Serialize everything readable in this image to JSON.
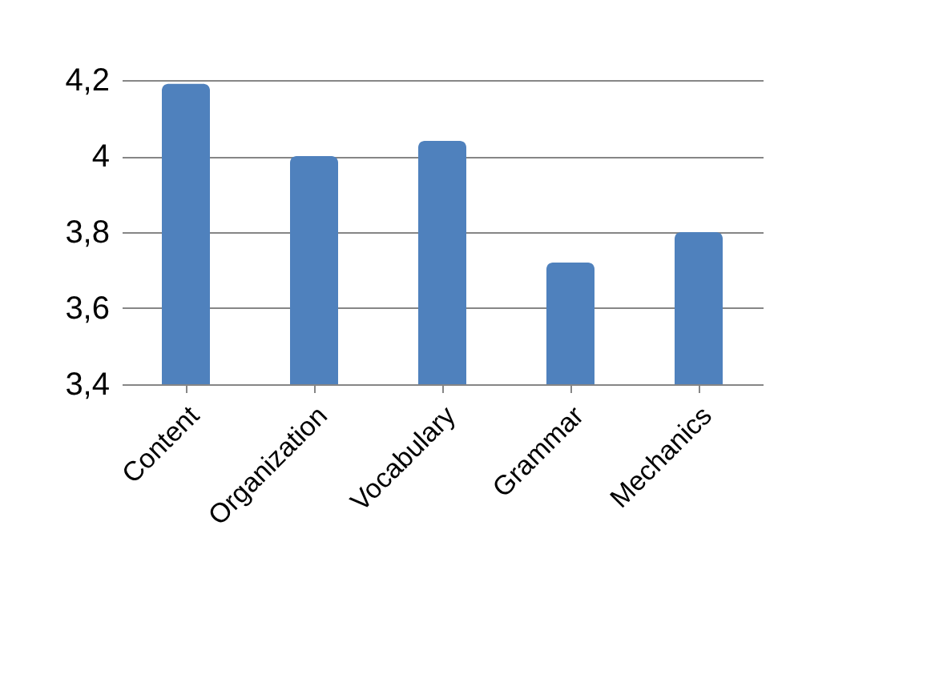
{
  "chart_data": {
    "type": "bar",
    "categories": [
      "Content",
      "Organization",
      "Vocabulary",
      "Grammar",
      "Mechanics"
    ],
    "values": [
      4.19,
      4.0,
      4.04,
      3.72,
      3.8
    ],
    "color": "#4f81bd",
    "ylim": [
      3.4,
      4.2
    ],
    "yticks": [
      {
        "value": 3.4,
        "label": "3,4"
      },
      {
        "value": 3.6,
        "label": "3,6"
      },
      {
        "value": 3.8,
        "label": "3,8"
      },
      4,
      {
        "value": 4.2,
        "label": "4,2"
      }
    ],
    "grid": "y"
  }
}
